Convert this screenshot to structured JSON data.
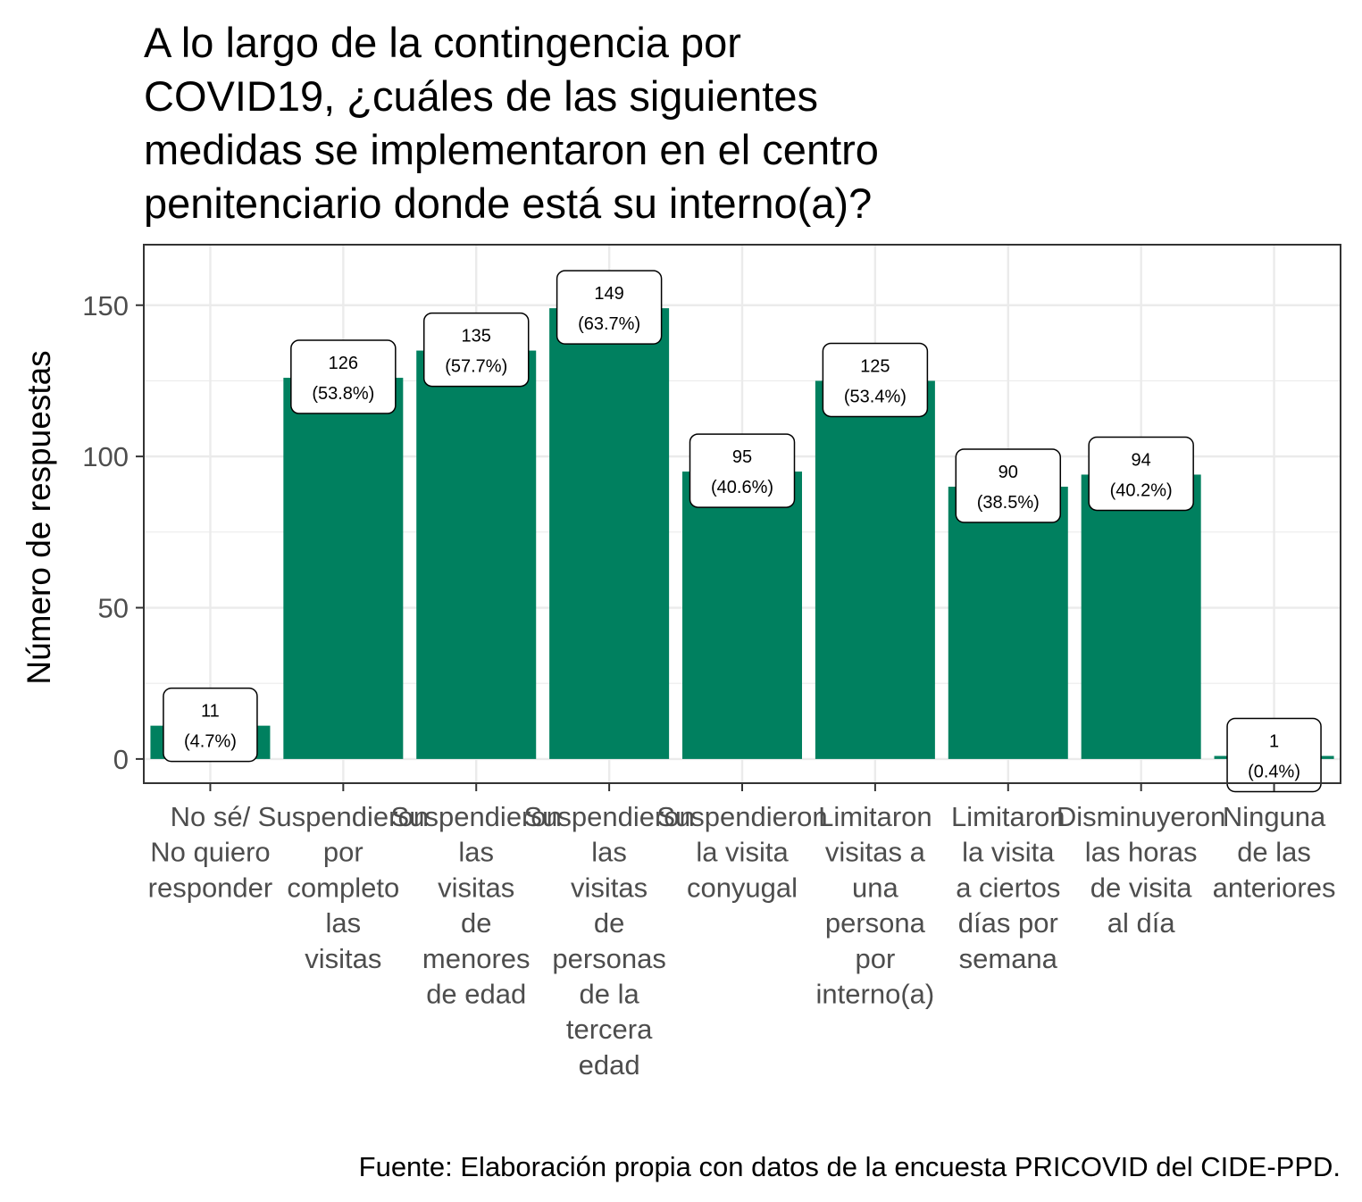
{
  "chart_data": {
    "type": "bar",
    "title": "A lo largo de la contingencia por COVID19, ¿cuáles de las siguientes medidas se implementaron en el centro penitenciario donde está su interno(a)?",
    "title_lines": [
      "A lo largo de la contingencia por",
      "COVID19, ¿cuáles de las siguientes",
      "medidas se implementaron en el centro",
      "penitenciario donde está su interno(a)?"
    ],
    "xlabel": "",
    "ylabel": "Número de respuestas",
    "ylim": [
      -8,
      170
    ],
    "yticks": [
      0,
      50,
      100,
      150
    ],
    "grid": true,
    "bar_color": "#00805f",
    "categories": [
      "No sé/ No quiero responder",
      "Suspendieron por completo las visitas",
      "Suspendieron las visitas de menores de edad",
      "Suspendieron las visitas de personas de la tercera edad",
      "Suspendieron la visita conyugal",
      "Limitaron visitas a una persona por interno(a)",
      "Limitaron la visita a ciertos días por semana",
      "Disminuyeron las horas de visita al día",
      "Ninguna de las anteriores"
    ],
    "category_lines": [
      [
        "No sé/",
        "No quiero",
        "responder"
      ],
      [
        "Suspendieron",
        "por",
        "completo",
        "las",
        "visitas"
      ],
      [
        "Suspendieron",
        "las",
        "visitas",
        "de",
        "menores",
        "de edad"
      ],
      [
        "Suspendieron",
        "las",
        "visitas",
        "de",
        "personas",
        "de la",
        "tercera",
        "edad"
      ],
      [
        "Suspendieron",
        "la visita",
        "conyugal"
      ],
      [
        "Limitaron",
        "visitas a",
        "una",
        "persona",
        "por",
        "interno(a)"
      ],
      [
        "Limitaron",
        "la visita",
        "a ciertos",
        "días por",
        "semana"
      ],
      [
        "Disminuyeron",
        "las horas",
        "de visita",
        "al día"
      ],
      [
        "Ninguna",
        "de las",
        "anteriores"
      ]
    ],
    "values": [
      11,
      126,
      135,
      149,
      95,
      125,
      90,
      94,
      1
    ],
    "percent_labels": [
      "(4.7%)",
      "(53.8%)",
      "(57.7%)",
      "(63.7%)",
      "(40.6%)",
      "(53.4%)",
      "(38.5%)",
      "(40.2%)",
      "(0.4%)"
    ],
    "caption": "Fuente: Elaboración propia con datos de la encuesta PRICOVID del CIDE-PPD."
  }
}
